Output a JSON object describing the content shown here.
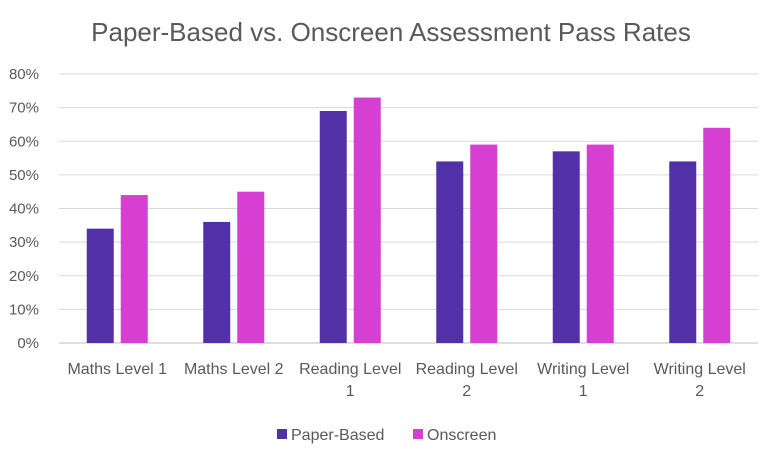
{
  "chart_data": {
    "type": "bar",
    "title": "Paper-Based vs. Onscreen Assessment Pass Rates",
    "xlabel": "",
    "ylabel": "",
    "categories": [
      [
        "Maths Level 1"
      ],
      [
        "Maths Level 2"
      ],
      [
        "Reading Level",
        "1"
      ],
      [
        "Reading Level",
        "2"
      ],
      [
        "Writing Level",
        "1"
      ],
      [
        "Writing Level",
        "2"
      ]
    ],
    "series": [
      {
        "name": "Paper-Based",
        "color": "#5230A8",
        "values": [
          34,
          36,
          69,
          54,
          57,
          54
        ]
      },
      {
        "name": "Onscreen",
        "color": "#D63FD1",
        "values": [
          44,
          45,
          73,
          59,
          59,
          64
        ]
      }
    ],
    "ylim": [
      0,
      80
    ],
    "yticks": [
      "0%",
      "10%",
      "20%",
      "30%",
      "40%",
      "50%",
      "60%",
      "70%",
      "80%"
    ],
    "grid": true,
    "legend": "bottom"
  }
}
